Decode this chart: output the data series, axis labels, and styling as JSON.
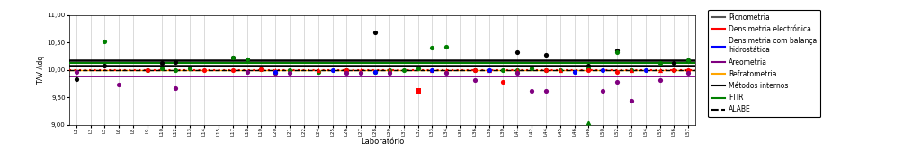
{
  "ylabel": "TAV Adq",
  "xlabel": "Laboratório",
  "ylim": [
    9.0,
    11.0
  ],
  "yticks": [
    9.0,
    9.5,
    10.0,
    10.5,
    11.0
  ],
  "ytick_labels": [
    "9,00",
    "9,50",
    "10,00",
    "10,50",
    "11,00"
  ],
  "x_labels": [
    "L1",
    "L3",
    "L5",
    "L6",
    "L8",
    "L9",
    "L10",
    "L12",
    "L13",
    "L14",
    "L15",
    "L17",
    "L18",
    "L19",
    "L20",
    "L21",
    "L22",
    "L24",
    "L25",
    "L26",
    "L27",
    "L28",
    "L29",
    "L31",
    "L32",
    "L33",
    "L34",
    "L35",
    "L36",
    "L38",
    "L39",
    "L41",
    "L42",
    "L44",
    "L45",
    "L46",
    "L48",
    "L50",
    "L52",
    "L53",
    "L54",
    "L55",
    "L56",
    "L57"
  ],
  "hline_black_upper": 10.18,
  "hline_black_lower": 10.07,
  "hline_green": 10.12,
  "hline_blue": 10.065,
  "hline_red_dotted": 10.0,
  "hline_orange": 10.0,
  "hline_purple": 9.885,
  "hline_dashed_black": 10.0,
  "scatter_black": {
    "x": [
      0,
      2,
      6,
      7,
      11,
      12,
      21,
      31,
      33,
      36,
      38,
      42,
      43
    ],
    "y": [
      9.83,
      10.08,
      10.12,
      10.15,
      10.22,
      10.19,
      10.68,
      10.32,
      10.28,
      10.08,
      10.35,
      10.12,
      10.18
    ]
  },
  "scatter_green_circle": {
    "x": [
      2,
      5,
      6,
      7,
      8,
      11,
      12,
      13,
      14,
      15,
      17,
      19,
      21,
      22,
      23,
      24,
      25,
      26,
      28,
      30,
      31,
      32,
      33,
      34,
      36,
      38,
      39,
      41,
      42,
      43
    ],
    "y": [
      10.52,
      10.0,
      10.03,
      10.0,
      10.03,
      10.22,
      10.2,
      10.01,
      9.95,
      10.0,
      9.97,
      10.0,
      9.97,
      10.0,
      10.0,
      10.03,
      10.4,
      10.42,
      10.0,
      10.0,
      10.0,
      10.03,
      10.0,
      10.0,
      10.03,
      10.32,
      10.0,
      10.12,
      10.0,
      10.17
    ]
  },
  "scatter_green_triangle": {
    "x": [
      36
    ],
    "y": [
      9.04
    ]
  },
  "scatter_red_circle": {
    "x": [
      5,
      9,
      11,
      13,
      19,
      28,
      30,
      33,
      36,
      38,
      42,
      43
    ],
    "y": [
      10.0,
      10.0,
      10.0,
      10.02,
      10.0,
      10.0,
      9.78,
      10.0,
      10.0,
      9.97,
      10.0,
      10.0
    ]
  },
  "scatter_red_square": {
    "x": [
      24
    ],
    "y": [
      9.62
    ]
  },
  "scatter_red_triangle": {
    "x": [
      14,
      17,
      20,
      22,
      25,
      26,
      29,
      31,
      34,
      39,
      41
    ],
    "y": [
      10.0,
      10.0,
      10.0,
      10.0,
      10.0,
      10.0,
      10.0,
      10.0,
      10.0,
      10.0,
      10.0
    ]
  },
  "scatter_purple": {
    "x": [
      0,
      3,
      7,
      12,
      14,
      15,
      19,
      20,
      22,
      26,
      28,
      31,
      32,
      33,
      37,
      38,
      39,
      41,
      43
    ],
    "y": [
      9.97,
      9.74,
      9.67,
      9.97,
      9.95,
      9.95,
      9.95,
      9.95,
      9.95,
      9.95,
      9.82,
      9.95,
      9.62,
      9.62,
      9.62,
      9.78,
      9.44,
      9.82,
      9.95
    ]
  },
  "scatter_blue": {
    "x": [
      14,
      18,
      21,
      25,
      29,
      35,
      37,
      40
    ],
    "y": [
      9.97,
      10.0,
      9.97,
      10.0,
      10.0,
      9.97,
      10.0,
      10.0
    ]
  },
  "bg_color": "#f0f0f0",
  "plot_bg": "#ffffff",
  "legend_entries": [
    {
      "label": "Picnometria",
      "color": "#555555",
      "type": "line"
    },
    {
      "label": "Densimetria electrónica",
      "color": "red",
      "type": "line"
    },
    {
      "label": "Densimetria com balança\nhidrostática",
      "color": "blue",
      "type": "line"
    },
    {
      "label": "Areometria",
      "color": "purple",
      "type": "line"
    },
    {
      "label": "Refratometria",
      "color": "orange",
      "type": "line"
    },
    {
      "label": "Métodos internos",
      "color": "black",
      "type": "line"
    },
    {
      "label": "FTIR",
      "color": "green",
      "type": "line"
    },
    {
      "label": "ALABE",
      "color": "black",
      "type": "dashed"
    }
  ]
}
